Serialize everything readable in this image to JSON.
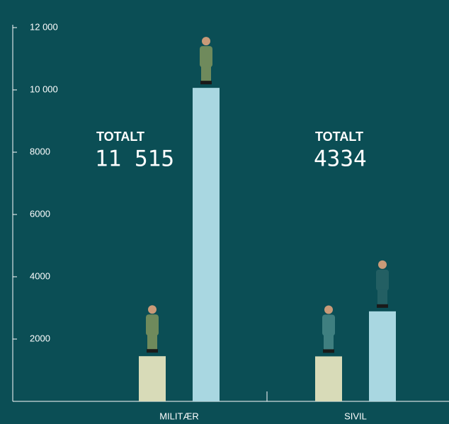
{
  "chart_data": {
    "type": "bar",
    "categories": [
      "MILITÆR",
      "SIVIL"
    ],
    "series": [
      {
        "color": "#d8dbb8",
        "values": [
          1450,
          1444
        ]
      },
      {
        "color": "#a9d7e1",
        "values": [
          10065,
          2890
        ]
      }
    ],
    "ylim": [
      0,
      12000
    ],
    "yticks": [
      2000,
      4000,
      6000,
      8000,
      {
        "value": 10000,
        "label": "10 000"
      },
      {
        "value": 12000,
        "label": "12 000"
      }
    ],
    "annotations": [
      {
        "label": "TOTALT",
        "total": "11 515"
      },
      {
        "label": "TOTALT",
        "total": "4334"
      }
    ]
  }
}
